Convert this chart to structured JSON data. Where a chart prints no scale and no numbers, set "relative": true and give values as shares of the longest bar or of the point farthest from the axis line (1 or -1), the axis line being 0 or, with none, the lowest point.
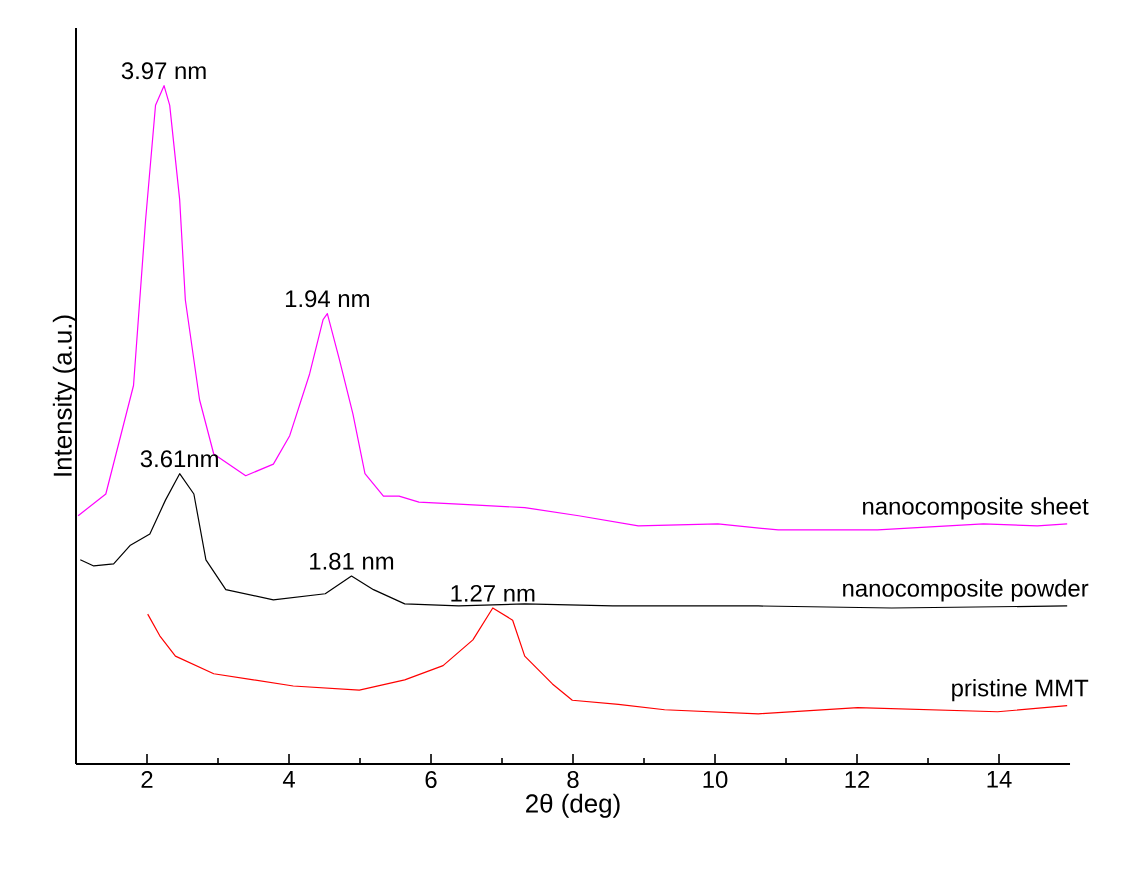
{
  "chart_data": {
    "type": "line",
    "xlabel": "2θ (deg)",
    "ylabel": "Intensity (a.u.)",
    "relative": true,
    "xlim": [
      1,
      15
    ],
    "xticks": [
      2,
      4,
      6,
      8,
      10,
      12,
      14
    ],
    "grid": false,
    "legend": false,
    "marker": "none",
    "line_style": "solid",
    "series": [
      {
        "name": "nanocomposite sheet",
        "color": "#ff00ff",
        "x": [
          1.03,
          1.42,
          1.81,
          1.98,
          2.12,
          2.24,
          2.32,
          2.46,
          2.54,
          2.74,
          2.94,
          3.39,
          3.78,
          4.01,
          4.29,
          4.48,
          4.54,
          4.71,
          4.9,
          5.07,
          5.33,
          5.55,
          5.83,
          6.39,
          7.32,
          8.08,
          8.92,
          10.04,
          10.89,
          12.29,
          13.78,
          14.54,
          14.96
        ],
        "values": [
          0.366,
          0.398,
          0.558,
          0.802,
          0.971,
          1.0,
          0.971,
          0.832,
          0.684,
          0.537,
          0.457,
          0.425,
          0.442,
          0.484,
          0.575,
          0.655,
          0.664,
          0.596,
          0.516,
          0.428,
          0.395,
          0.395,
          0.386,
          0.383,
          0.378,
          0.366,
          0.351,
          0.354,
          0.345,
          0.345,
          0.354,
          0.351,
          0.354
        ]
      },
      {
        "name": "nanocomposite powder",
        "color": "#000000",
        "x": [
          1.06,
          1.25,
          1.53,
          1.76,
          2.04,
          2.26,
          2.46,
          2.66,
          2.83,
          3.11,
          3.78,
          4.51,
          4.88,
          5.19,
          5.63,
          6.39,
          7.32,
          8.56,
          10.61,
          12.49,
          14.96
        ],
        "values": [
          0.301,
          0.292,
          0.295,
          0.322,
          0.339,
          0.389,
          0.428,
          0.398,
          0.301,
          0.257,
          0.242,
          0.251,
          0.277,
          0.257,
          0.236,
          0.233,
          0.236,
          0.233,
          0.233,
          0.23,
          0.233
        ]
      },
      {
        "name": "pristine MMT",
        "color": "#ff0000",
        "x": [
          2.01,
          2.18,
          2.4,
          2.94,
          3.5,
          4.06,
          4.99,
          5.63,
          6.17,
          6.59,
          6.87,
          7.15,
          7.32,
          7.71,
          7.99,
          8.64,
          9.29,
          10.61,
          12.01,
          13.98,
          14.96
        ],
        "values": [
          0.221,
          0.189,
          0.159,
          0.133,
          0.124,
          0.115,
          0.109,
          0.124,
          0.145,
          0.183,
          0.23,
          0.212,
          0.159,
          0.118,
          0.094,
          0.088,
          0.08,
          0.074,
          0.083,
          0.077,
          0.086
        ]
      }
    ],
    "annotations": [
      {
        "text": "3.97 nm",
        "x": 2.24,
        "y": 1.0
      },
      {
        "text": "1.94 nm",
        "x": 4.54,
        "y": 0.664
      },
      {
        "text": "3.61nm",
        "x": 2.46,
        "y": 0.428
      },
      {
        "text": "1.81 nm",
        "x": 4.88,
        "y": 0.277
      },
      {
        "text": "1.27 nm",
        "x": 6.87,
        "y": 0.23
      }
    ]
  }
}
